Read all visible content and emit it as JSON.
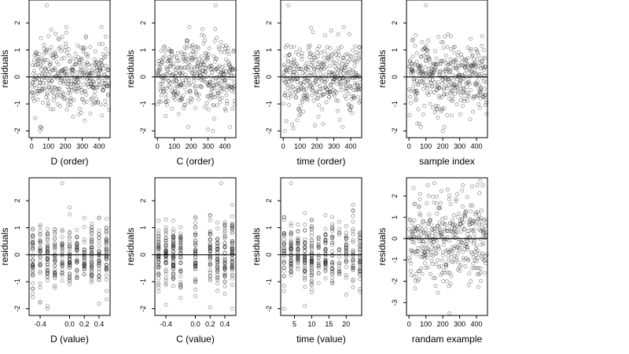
{
  "chart_data": [
    {
      "type": "scatter",
      "xlabel": "D (order)",
      "ylabel": "residuals",
      "x_ticks": [
        "0",
        "100",
        "200",
        "300",
        "400"
      ],
      "x_tick_values": [
        0,
        100,
        200,
        300,
        400
      ],
      "y_ticks": [
        "-2",
        "-1",
        "0",
        "1",
        "2"
      ],
      "y_tick_values": [
        -2,
        -1,
        0,
        1,
        2
      ],
      "xlim": [
        -15,
        465
      ],
      "ylim": [
        -2.25,
        2.85
      ],
      "hline": 0,
      "gen": {
        "mode": "order",
        "n": 400,
        "xmax": 460,
        "sd": 0.65,
        "seed": 11,
        "outliers": [
          [
            90,
            2.65
          ],
          [
            50,
            -2.0
          ],
          [
            60,
            -1.9
          ]
        ]
      }
    },
    {
      "type": "scatter",
      "xlabel": "C (order)",
      "ylabel": "residuals",
      "x_ticks": [
        "0",
        "100",
        "200",
        "300",
        "400"
      ],
      "x_tick_values": [
        0,
        100,
        200,
        300,
        400
      ],
      "y_ticks": [
        "-2",
        "-1",
        "0",
        "1",
        "2"
      ],
      "y_tick_values": [
        -2,
        -1,
        0,
        1,
        2
      ],
      "xlim": [
        -15,
        465
      ],
      "ylim": [
        -2.25,
        2.85
      ],
      "hline": 0,
      "gen": {
        "mode": "order",
        "n": 400,
        "xmax": 460,
        "sd": 0.65,
        "seed": 23,
        "outliers": [
          [
            345,
            2.65
          ],
          [
            300,
            -1.95
          ],
          [
            330,
            -2.0
          ]
        ]
      }
    },
    {
      "type": "scatter",
      "xlabel": "time (order)",
      "ylabel": "residuals",
      "x_ticks": [
        "0",
        "100",
        "200",
        "300",
        "400"
      ],
      "x_tick_values": [
        0,
        100,
        200,
        300,
        400
      ],
      "y_ticks": [
        "-2",
        "-1",
        "0",
        "1",
        "2"
      ],
      "y_tick_values": [
        -2,
        -1,
        0,
        1,
        2
      ],
      "xlim": [
        -15,
        465
      ],
      "ylim": [
        -2.25,
        2.85
      ],
      "hline": 0,
      "gen": {
        "mode": "order",
        "n": 400,
        "xmax": 460,
        "sd": 0.65,
        "seed": 37,
        "outliers": [
          [
            30,
            2.65
          ],
          [
            10,
            -2.0
          ],
          [
            60,
            -1.9
          ]
        ]
      }
    },
    {
      "type": "scatter",
      "xlabel": "sample index",
      "ylabel": "residuals",
      "x_ticks": [
        "0",
        "100",
        "200",
        "300",
        "400"
      ],
      "x_tick_values": [
        0,
        100,
        200,
        300,
        400
      ],
      "y_ticks": [
        "-2",
        "-1",
        "0",
        "1",
        "2"
      ],
      "y_tick_values": [
        -2,
        -1,
        0,
        1,
        2
      ],
      "xlim": [
        -15,
        465
      ],
      "ylim": [
        -2.25,
        2.85
      ],
      "hline": 0,
      "gen": {
        "mode": "order",
        "n": 400,
        "xmax": 460,
        "sd": 0.65,
        "seed": 53,
        "outliers": [
          [
            100,
            2.65
          ],
          [
            200,
            -2.0
          ],
          [
            210,
            -1.85
          ]
        ]
      }
    },
    {
      "type": "scatter",
      "xlabel": "D (value)",
      "ylabel": "residuals",
      "x_ticks": [
        "-0.4",
        "0.0",
        "0.2",
        "0.4"
      ],
      "x_tick_values": [
        -0.4,
        0.0,
        0.2,
        0.4
      ],
      "y_ticks": [
        "-2",
        "-1",
        "0",
        "1",
        "2"
      ],
      "y_tick_values": [
        -2,
        -1,
        0,
        1,
        2
      ],
      "xlim": [
        -0.55,
        0.55
      ],
      "ylim": [
        -2.25,
        2.85
      ],
      "hline": 0,
      "gen": {
        "mode": "discrete",
        "n": 400,
        "levels": [
          -0.5,
          -0.4,
          -0.3,
          -0.2,
          -0.1,
          0.0,
          0.1,
          0.2,
          0.3,
          0.4,
          0.5
        ],
        "sd": 0.6,
        "seed": 71,
        "outliers": [
          [
            -0.1,
            2.65
          ],
          [
            -0.3,
            -2.0
          ],
          [
            -0.3,
            -1.9
          ]
        ]
      }
    },
    {
      "type": "scatter",
      "xlabel": "C (value)",
      "ylabel": "residuals",
      "x_ticks": [
        "-0.4",
        "0.0",
        "0.2",
        "0.4"
      ],
      "x_tick_values": [
        -0.4,
        0.0,
        0.2,
        0.4
      ],
      "y_ticks": [
        "-2",
        "-1",
        "0",
        "1",
        "2"
      ],
      "y_tick_values": [
        -2,
        -1,
        0,
        1,
        2
      ],
      "xlim": [
        -0.55,
        0.55
      ],
      "ylim": [
        -2.25,
        2.85
      ],
      "hline": 0,
      "gen": {
        "mode": "discrete",
        "n": 400,
        "levels": [
          -0.5,
          -0.4,
          -0.3,
          -0.2,
          0.0,
          0.2,
          0.3,
          0.4,
          0.5
        ],
        "sd": 0.6,
        "seed": 89,
        "outliers": [
          [
            0.35,
            2.65
          ],
          [
            0.5,
            -2.0
          ],
          [
            0.2,
            -1.95
          ]
        ]
      }
    },
    {
      "type": "scatter",
      "xlabel": "time (value)",
      "ylabel": "residuals",
      "x_ticks": [
        "5",
        "10",
        "15",
        "20"
      ],
      "x_tick_values": [
        5,
        10,
        15,
        20
      ],
      "y_ticks": [
        "-2",
        "-1",
        "0",
        "1",
        "2"
      ],
      "y_tick_values": [
        -2,
        -1,
        0,
        1,
        2
      ],
      "xlim": [
        1,
        24.5
      ],
      "ylim": [
        -2.25,
        2.85
      ],
      "hline": 0,
      "gen": {
        "mode": "discrete",
        "n": 400,
        "levels": [
          2,
          4,
          6,
          8,
          10,
          12,
          14,
          16,
          18,
          20,
          22,
          24
        ],
        "sd": 0.6,
        "seed": 97,
        "outliers": [
          [
            4,
            2.65
          ],
          [
            2,
            -2.0
          ],
          [
            8,
            -1.9
          ]
        ]
      }
    },
    {
      "type": "scatter",
      "xlabel": "randam example",
      "ylabel": "residuals",
      "x_ticks": [
        "0",
        "100",
        "200",
        "300",
        "400"
      ],
      "x_tick_values": [
        0,
        100,
        200,
        300,
        400
      ],
      "y_ticks": [
        "-3",
        "-2",
        "-1",
        "0",
        "1",
        "2"
      ],
      "y_tick_values": [
        -3,
        -2,
        -1,
        0,
        1,
        2
      ],
      "xlim": [
        -15,
        465
      ],
      "ylim": [
        -3.6,
        2.85
      ],
      "hline": 0,
      "gen": {
        "mode": "order",
        "n": 400,
        "xmax": 460,
        "sd": 1.05,
        "seed": 131,
        "outliers": [
          [
            240,
            -3.5
          ],
          [
            420,
            2.7
          ],
          [
            150,
            2.6
          ]
        ]
      }
    }
  ]
}
